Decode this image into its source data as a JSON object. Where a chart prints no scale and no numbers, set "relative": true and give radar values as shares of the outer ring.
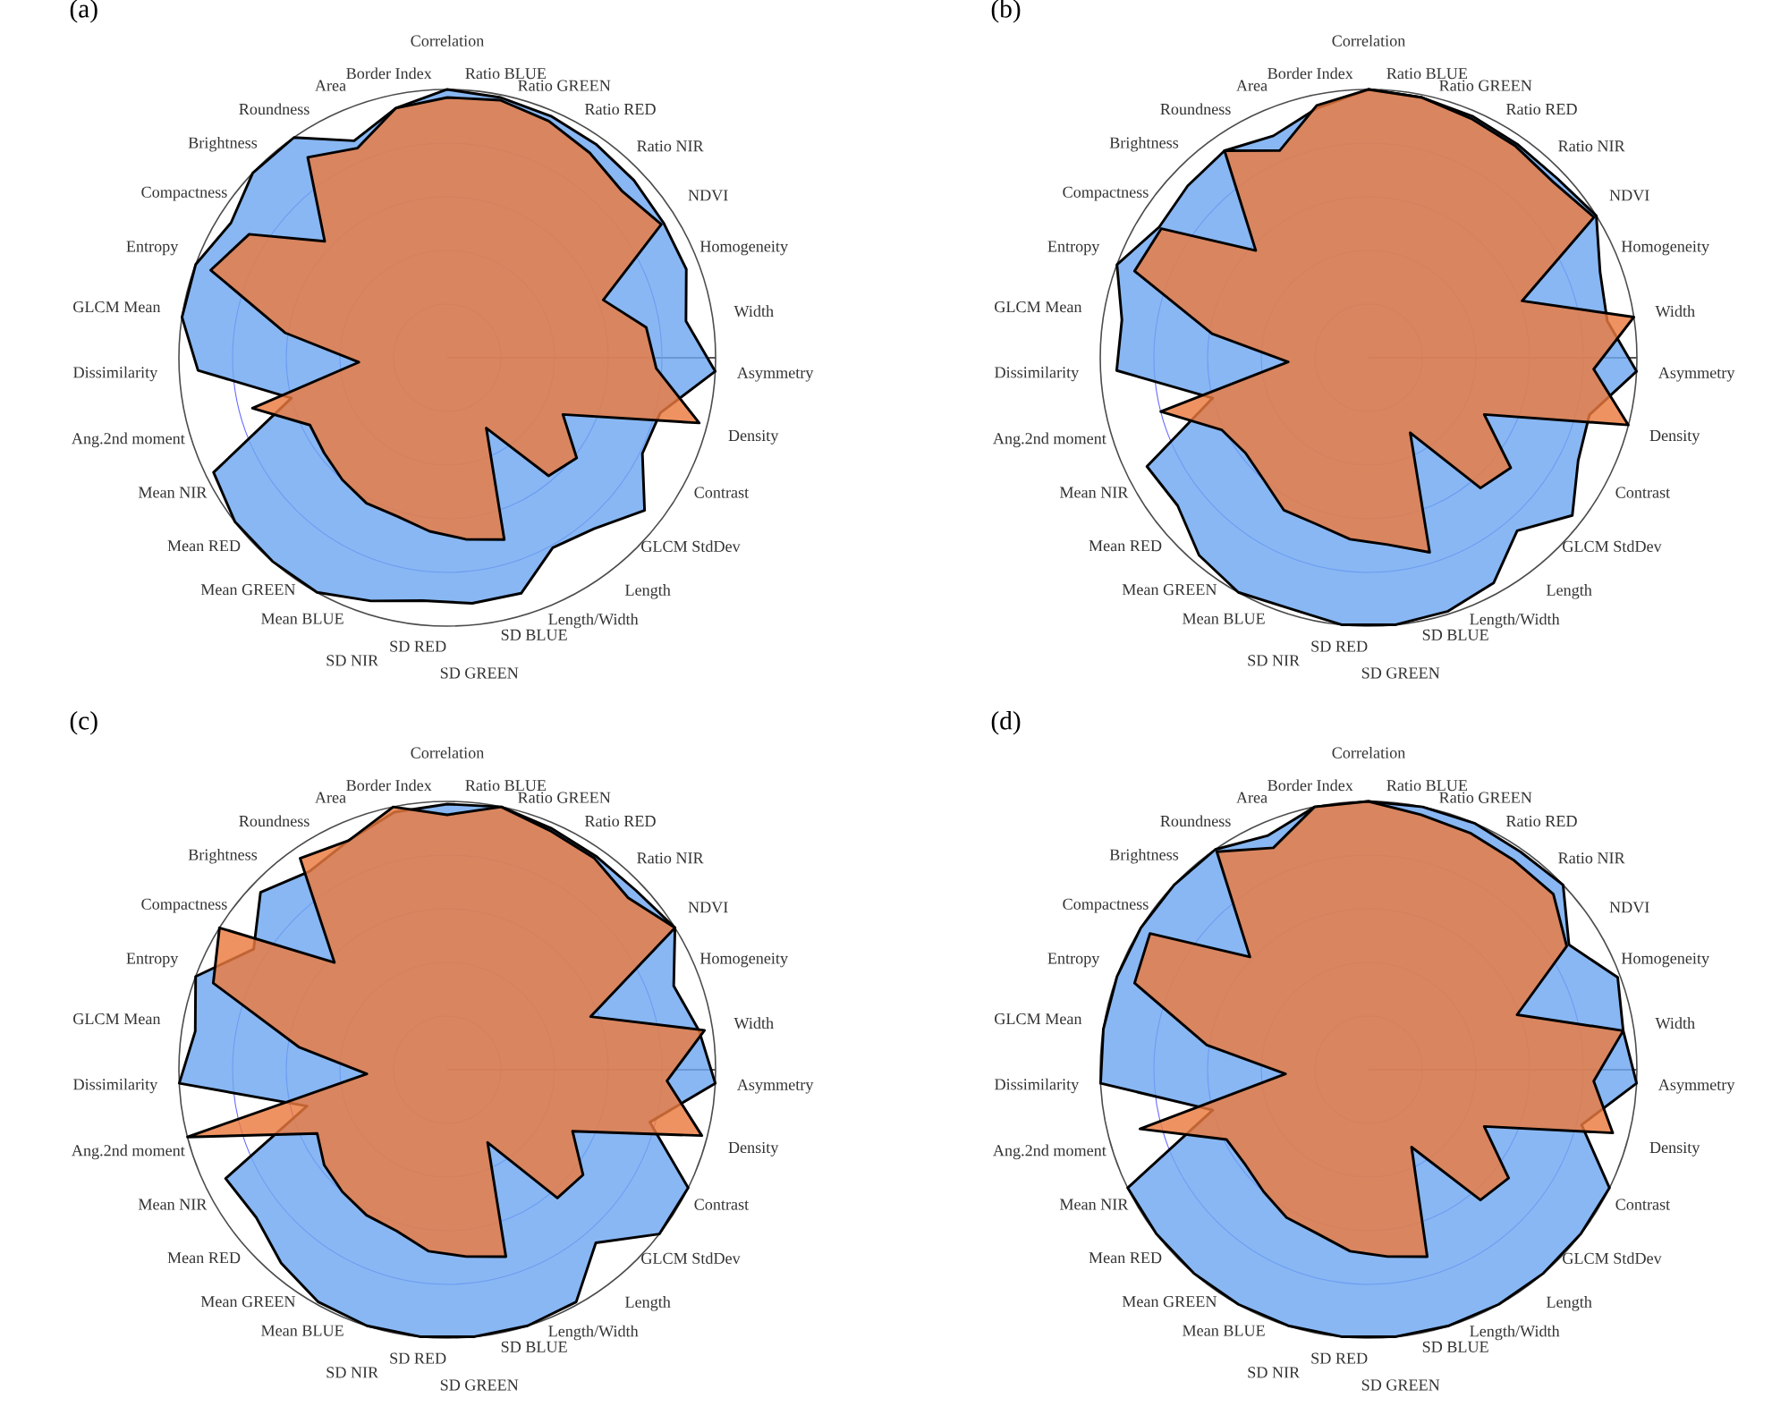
{
  "chart_data": [
    {
      "type": "radar",
      "title": "(a)",
      "relative": true,
      "grid": true,
      "categories": [
        "Correlation",
        "Ratio BLUE",
        "Ratio GREEN",
        "Ratio RED",
        "Ratio NIR",
        "NDVI",
        "Homogeneity",
        "Width",
        "Asymmetry",
        "Density",
        "Contrast",
        "GLCM StdDev",
        "Length",
        "Length/Width",
        "SD BLUE",
        "SD GREEN",
        "SD RED",
        "SD NIR",
        "Mean BLUE",
        "Mean GREEN",
        "Mean RED",
        "Mean NIR",
        "Ang.2nd moment",
        "Dissimilarity",
        "GLCM Mean",
        "Entropy",
        "Compactness",
        "Brightness",
        "Roundness",
        "Area",
        "Border Index"
      ],
      "series": [
        {
          "color": "#6ea7f0",
          "values": [
            1.0,
            0.99,
            0.98,
            0.97,
            0.96,
            0.95,
            0.95,
            0.9,
            1.0,
            0.82,
            0.81,
            0.93,
            0.84,
            0.81,
            0.92,
            0.92,
            0.91,
            0.95,
            1.0,
            1.0,
            1.0,
            0.97,
            0.6,
            0.93,
            1.0,
            1.0,
            0.95,
            1.0,
            1.0,
            0.88,
            0.95
          ]
        },
        {
          "color": "#ec7a3e",
          "values": [
            0.97,
            0.98,
            0.96,
            0.93,
            0.9,
            0.94,
            0.62,
            0.75,
            0.78,
            0.97,
            0.48,
            0.61,
            0.58,
            0.3,
            0.71,
            0.68,
            0.65,
            0.62,
            0.62,
            0.6,
            0.58,
            0.57,
            0.75,
            0.33,
            0.61,
            0.94,
            0.87,
            0.63,
            0.91,
            0.85,
            0.95
          ]
        }
      ]
    },
    {
      "type": "radar",
      "title": "(b)",
      "relative": true,
      "grid": true,
      "categories": [
        "Correlation",
        "Ratio BLUE",
        "Ratio GREEN",
        "Ratio RED",
        "Ratio NIR",
        "NDVI",
        "Homogeneity",
        "Width",
        "Asymmetry",
        "Density",
        "Contrast",
        "GLCM StdDev",
        "Length",
        "Length/Width",
        "SD BLUE",
        "SD GREEN",
        "SD RED",
        "SD NIR",
        "Mean BLUE",
        "Mean GREEN",
        "Mean RED",
        "Mean NIR",
        "Ang.2nd moment",
        "Dissimilarity",
        "GLCM Mean",
        "Entropy",
        "Compactness",
        "Brightness",
        "Roundness",
        "Area",
        "Border Index"
      ],
      "series": [
        {
          "color": "#6ea7f0",
          "values": [
            1.0,
            0.99,
            0.98,
            0.97,
            0.97,
            1.0,
            0.92,
            0.9,
            1.0,
            0.85,
            0.87,
            0.96,
            0.85,
            0.96,
            0.99,
            1.0,
            1.0,
            0.98,
            1.0,
            0.97,
            0.9,
            0.92,
            0.6,
            0.94,
            0.93,
            1.0,
            0.92,
            0.93,
            0.94,
            0.9,
            0.95
          ]
        },
        {
          "color": "#ec7a3e",
          "values": [
            1.0,
            0.99,
            0.97,
            0.96,
            0.95,
            0.99,
            0.61,
            1.0,
            0.84,
            1.0,
            0.48,
            0.67,
            0.64,
            0.32,
            0.76,
            0.7,
            0.68,
            0.65,
            0.65,
            0.6,
            0.58,
            0.61,
            0.8,
            0.3,
            0.59,
            0.93,
            0.91,
            0.58,
            0.94,
            0.84,
            0.96
          ]
        }
      ]
    },
    {
      "type": "radar",
      "title": "(c)",
      "relative": true,
      "grid": true,
      "categories": [
        "Correlation",
        "Ratio BLUE",
        "Ratio GREEN",
        "Ratio RED",
        "Ratio NIR",
        "NDVI",
        "Homogeneity",
        "Width",
        "Asymmetry",
        "Density",
        "Contrast",
        "GLCM StdDev",
        "Length",
        "Length/Width",
        "SD BLUE",
        "SD GREEN",
        "SD RED",
        "SD NIR",
        "Mean BLUE",
        "Mean GREEN",
        "Mean RED",
        "Mean NIR",
        "Ang.2nd moment",
        "Dissimilarity",
        "GLCM Mean",
        "Entropy",
        "Compactness",
        "Brightness",
        "Roundness",
        "Area",
        "Border Index"
      ],
      "series": [
        {
          "color": "#6ea7f0",
          "values": [
            0.99,
            1.0,
            0.98,
            0.97,
            0.97,
            1.0,
            0.9,
            0.95,
            1.0,
            0.78,
            1.0,
            1.0,
            0.85,
            0.99,
            1.0,
            1.0,
            1.0,
            1.0,
            0.99,
            0.95,
            0.9,
            0.92,
            0.54,
            1.0,
            0.95,
            1.0,
            0.85,
            0.96,
            0.9,
            0.93,
            0.98
          ]
        },
        {
          "color": "#ec7a3e",
          "values": [
            0.95,
            1.0,
            0.97,
            0.96,
            0.93,
            1.0,
            0.57,
            0.97,
            0.82,
            0.98,
            0.52,
            0.64,
            0.63,
            0.31,
            0.73,
            0.7,
            0.68,
            0.63,
            0.62,
            0.6,
            0.58,
            0.54,
            1.0,
            0.3,
            0.56,
            0.93,
            1.0,
            0.58,
            0.96,
            0.93,
            1.0
          ]
        }
      ]
    },
    {
      "type": "radar",
      "title": "(d)",
      "relative": true,
      "grid": true,
      "categories": [
        "Correlation",
        "Ratio BLUE",
        "Ratio GREEN",
        "Ratio RED",
        "Ratio NIR",
        "NDVI",
        "Homogeneity",
        "Width",
        "Asymmetry",
        "Density",
        "Contrast",
        "GLCM StdDev",
        "Length",
        "Length/Width",
        "SD BLUE",
        "SD GREEN",
        "SD RED",
        "SD NIR",
        "Mean BLUE",
        "Mean GREEN",
        "Mean RED",
        "Mean NIR",
        "Ang.2nd moment",
        "Dissimilarity",
        "GLCM Mean",
        "Entropy",
        "Compactness",
        "Brightness",
        "Roundness",
        "Area",
        "Border Index"
      ],
      "series": [
        {
          "color": "#6ea7f0",
          "values": [
            1.0,
            1.0,
            1.0,
            0.99,
            1.0,
            0.88,
            0.99,
            0.96,
            1.0,
            0.82,
            1.0,
            1.0,
            1.0,
            1.0,
            1.0,
            1.0,
            1.0,
            1.0,
            1.0,
            1.0,
            1.0,
            1.0,
            0.6,
            1.0,
            1.0,
            1.0,
            1.0,
            1.0,
            1.0,
            0.95,
            1.0
          ]
        },
        {
          "color": "#ec7a3e",
          "values": [
            1.0,
            0.97,
            0.96,
            0.95,
            0.95,
            0.87,
            0.59,
            0.96,
            0.84,
            0.94,
            0.48,
            0.66,
            0.64,
            0.33,
            0.73,
            0.7,
            0.68,
            0.64,
            0.63,
            0.6,
            0.58,
            0.59,
            0.88,
            0.31,
            0.61,
            0.93,
            0.96,
            0.61,
            0.99,
            0.9,
            1.0
          ]
        }
      ]
    }
  ]
}
